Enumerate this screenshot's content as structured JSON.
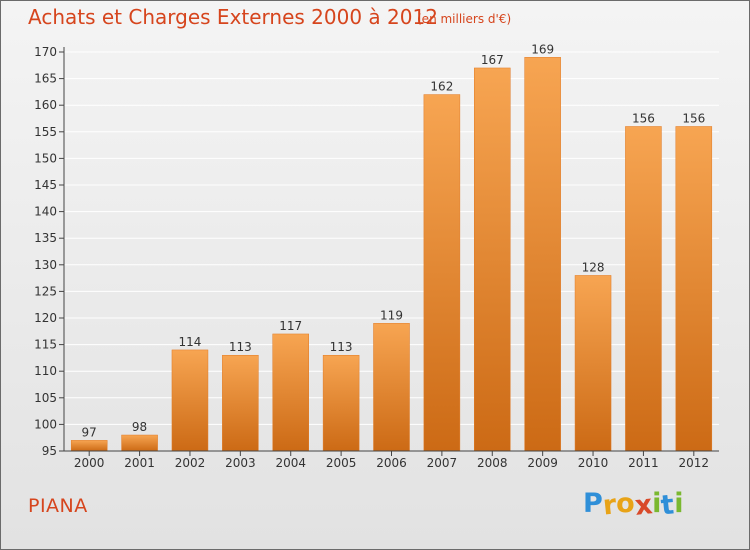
{
  "header": {
    "title": "Achats et Charges Externes 2000 à 2012",
    "unit": "(en milliers d'€)"
  },
  "footer": {
    "commune": "PIANA",
    "logo": {
      "letters": [
        "P",
        "r",
        "o",
        "x",
        "i",
        "t",
        "i"
      ],
      "colors": [
        "#2f8fd8",
        "#e8a317",
        "#e8a317",
        "#d94a2a",
        "#7ab82f",
        "#2f8fd8",
        "#7ab82f"
      ]
    }
  },
  "colors": {
    "bar_light": "#f7a552",
    "bar_dark": "#cc6a15",
    "axis": "#444444",
    "grid": "#ffffff",
    "label": "#333333"
  },
  "chart_data": {
    "type": "bar",
    "title": "Achats et Charges Externes 2000 à 2012",
    "categories": [
      "2000",
      "2001",
      "2002",
      "2003",
      "2004",
      "2005",
      "2006",
      "2007",
      "2008",
      "2009",
      "2010",
      "2011",
      "2012"
    ],
    "values": [
      97,
      98,
      114,
      113,
      117,
      113,
      119,
      162,
      167,
      169,
      128,
      156,
      156
    ],
    "ylim": [
      95,
      170
    ],
    "yticks": [
      95,
      100,
      105,
      110,
      115,
      120,
      125,
      130,
      135,
      140,
      145,
      150,
      155,
      160,
      165,
      170
    ],
    "grid": true,
    "data_labels": true
  }
}
